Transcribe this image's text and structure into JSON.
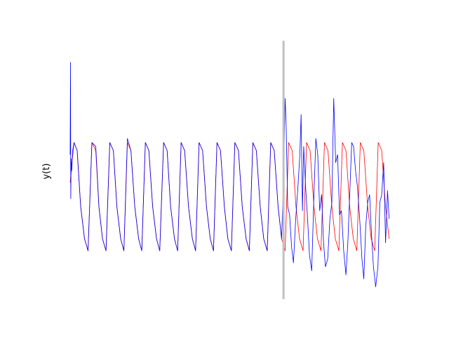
{
  "chart_data": {
    "type": "line",
    "title": "",
    "xlabel": "",
    "ylabel": "y(t)",
    "xlim": [
      0,
      1000
    ],
    "ylim": [
      -1.55,
      1.55
    ],
    "grid": false,
    "legend": "none",
    "axes_visible": false,
    "split_marker": {
      "x": 667,
      "color": "#c0c0c0"
    },
    "series": [
      {
        "color": "#ff0000",
        "x": [
          0,
          12,
          22,
          33,
          45,
          56,
          68,
          80,
          90,
          101,
          112,
          124,
          135,
          146,
          158,
          168,
          179,
          190,
          202,
          214,
          224,
          235,
          246,
          258,
          270,
          280,
          292,
          303,
          314,
          326,
          336,
          347,
          358,
          370,
          382,
          392,
          403,
          414,
          426,
          438,
          448,
          459,
          470,
          482,
          493,
          504,
          515,
          526,
          538,
          550,
          560,
          571,
          582,
          594,
          605,
          616,
          627,
          638,
          650,
          661,
          672,
          683,
          694,
          706,
          717,
          728,
          739,
          750,
          762,
          773,
          784,
          795,
          806,
          818,
          829,
          840,
          851,
          862,
          874,
          885,
          896,
          907,
          918,
          930,
          941,
          952,
          963,
          974,
          986,
          997
        ],
        "y": [
          -0.15,
          0.35,
          0.25,
          -0.45,
          -0.85,
          -1.0,
          0.35,
          0.25,
          -0.45,
          -0.85,
          -1.0,
          0.35,
          0.25,
          -0.45,
          -0.85,
          -1.0,
          0.35,
          0.25,
          -0.45,
          -0.85,
          -1.0,
          0.35,
          0.25,
          -0.45,
          -0.85,
          -1.0,
          0.35,
          0.25,
          -0.45,
          -0.85,
          -1.0,
          0.35,
          0.25,
          -0.45,
          -0.85,
          -1.0,
          0.35,
          0.25,
          -0.45,
          -0.85,
          -1.0,
          0.35,
          0.25,
          -0.45,
          -0.85,
          -1.0,
          0.35,
          0.25,
          -0.45,
          -0.85,
          -1.0,
          0.35,
          0.25,
          -0.45,
          -0.85,
          -1.0,
          0.35,
          0.25,
          -0.45,
          -0.85,
          -1.0,
          0.35,
          0.25,
          -0.45,
          -0.85,
          -1.0,
          0.35,
          0.25,
          -0.45,
          -0.85,
          -1.0,
          0.35,
          0.25,
          -0.45,
          -0.85,
          -1.0,
          0.35,
          0.25,
          -0.45,
          -0.85,
          -1.0,
          0.35,
          0.25,
          -0.45,
          -0.85,
          -1.0,
          0.35,
          0.25,
          -0.45,
          -0.85
        ]
      },
      {
        "color": "#0000ff",
        "x": [
          0,
          1,
          2,
          3,
          5,
          8,
          12,
          22,
          33,
          45,
          56,
          68,
          80,
          90,
          101,
          112,
          124,
          135,
          146,
          158,
          168,
          179,
          190,
          202,
          214,
          224,
          235,
          246,
          258,
          270,
          280,
          292,
          303,
          314,
          326,
          336,
          347,
          358,
          370,
          382,
          392,
          403,
          414,
          426,
          438,
          448,
          459,
          470,
          482,
          493,
          504,
          515,
          526,
          538,
          550,
          560,
          571,
          582,
          594,
          605,
          616,
          627,
          638,
          650,
          661,
          667,
          670,
          672,
          675,
          680,
          686,
          692,
          698,
          705,
          712,
          718,
          722,
          726,
          730,
          736,
          742,
          748,
          755,
          762,
          768,
          774,
          780,
          786,
          792,
          798,
          805,
          812,
          818,
          824,
          830,
          836,
          842,
          848,
          855,
          862,
          868,
          874,
          880,
          886,
          892,
          898,
          905,
          912,
          918,
          924,
          930,
          936,
          942,
          948,
          955,
          962,
          968,
          974,
          980,
          986,
          992,
          997
        ],
        "y": [
          0.2,
          1.35,
          -0.35,
          0.15,
          0.0,
          0.25,
          0.35,
          0.25,
          -0.45,
          -0.85,
          -1.0,
          0.35,
          0.3,
          -0.45,
          -0.85,
          -1.0,
          0.35,
          0.25,
          -0.45,
          -0.85,
          -1.0,
          0.4,
          0.25,
          -0.45,
          -0.85,
          -1.0,
          0.35,
          0.25,
          -0.45,
          -0.85,
          -1.0,
          0.35,
          0.25,
          -0.45,
          -0.85,
          -1.0,
          0.35,
          0.25,
          -0.45,
          -0.85,
          -1.0,
          0.35,
          0.25,
          -0.45,
          -0.85,
          -1.0,
          0.35,
          0.25,
          -0.45,
          -0.85,
          -1.0,
          0.35,
          0.25,
          -0.45,
          -0.85,
          -1.0,
          0.35,
          0.25,
          -0.45,
          -0.85,
          -1.0,
          0.35,
          0.25,
          -0.45,
          -0.85,
          -0.1,
          0.5,
          0.9,
          0.6,
          -0.45,
          -0.55,
          -0.95,
          -1.15,
          -0.6,
          -0.2,
          0.2,
          0.7,
          -0.5,
          0.3,
          -0.2,
          -0.6,
          -1.05,
          -1.25,
          -0.3,
          0.4,
          0.2,
          -0.5,
          -0.3,
          -0.9,
          -1.2,
          -1.1,
          -0.6,
          -0.4,
          0.9,
          0.1,
          0.2,
          -0.55,
          -0.5,
          -1.0,
          -1.3,
          -0.9,
          -0.3,
          0.35,
          0.3,
          0.0,
          -0.2,
          -0.6,
          -1.1,
          -1.35,
          -0.7,
          -0.4,
          -0.3,
          -0.8,
          -1.2,
          -1.45,
          -1.2,
          -0.4,
          -0.3,
          0.1,
          -0.9,
          -0.25,
          -0.6
        ]
      }
    ]
  }
}
